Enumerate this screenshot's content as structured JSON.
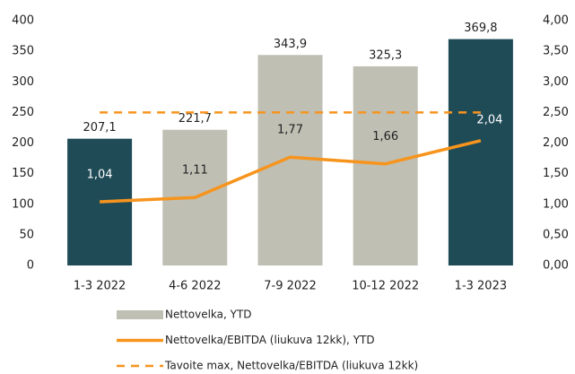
{
  "chart_data": {
    "type": "bar-line",
    "categories": [
      "1-3 2022",
      "4-6 2022",
      "7-9 2022",
      "10-12 2022",
      "1-3 2023"
    ],
    "series": [
      {
        "name": "Nettovelka, YTD",
        "type": "bar",
        "color": "#bfbfb4",
        "colors": [
          "#1f4b57",
          "#bfbfb4",
          "#bfbfb4",
          "#bfbfb4",
          "#1f4b57"
        ],
        "values": [
          207.1,
          221.7,
          343.9,
          325.3,
          369.8
        ],
        "value_labels": [
          "207,1",
          "221,7",
          "343,9",
          "325,3",
          "369,8"
        ]
      },
      {
        "name": "Nettovelka/EBITDA (liukuva 12kk), YTD",
        "type": "line",
        "axis": "y2",
        "color": "#f7941d",
        "values": [
          1.04,
          1.11,
          1.77,
          1.66,
          2.04
        ],
        "value_labels": [
          "1,04",
          "1,11",
          "1,77",
          "1,66",
          "2,04"
        ]
      },
      {
        "name": "Tavoite max, Nettovelka/EBITDA (liukuva 12kk)",
        "type": "dashed",
        "axis": "y2",
        "color": "#f7941d",
        "values": [
          2.5,
          2.5,
          2.5,
          2.5,
          2.5
        ]
      }
    ],
    "ylim": [
      0,
      400
    ],
    "yticks": [
      0,
      50,
      100,
      150,
      200,
      250,
      300,
      350,
      400
    ],
    "y2lim": [
      0,
      4
    ],
    "y2ticks": [
      {
        "value": 0,
        "label": "0,00"
      },
      {
        "value": 0.5,
        "label": "0,50"
      },
      {
        "value": 1,
        "label": "1,00"
      },
      {
        "value": 1.5,
        "label": "1,50"
      },
      {
        "value": 2,
        "label": "2,00"
      },
      {
        "value": 2.5,
        "label": "2,50"
      },
      {
        "value": 3,
        "label": "3,00"
      },
      {
        "value": 3.5,
        "label": "3,50"
      },
      {
        "value": 4,
        "label": "4,00"
      }
    ],
    "grid": false,
    "legend": "bottom"
  }
}
